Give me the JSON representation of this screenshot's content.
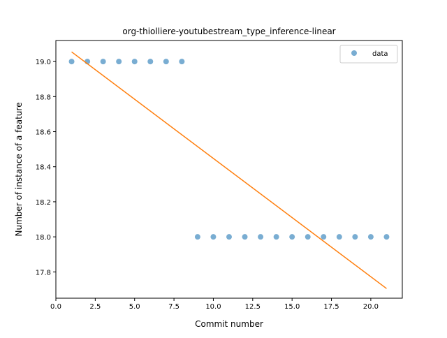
{
  "chart_data": {
    "type": "scatter",
    "title": "org-thiolliere-youtubestream_type_inference-linear",
    "xlabel": "Commit number",
    "ylabel": "Number of instance of a feature",
    "xlim": [
      0.0,
      22.0
    ],
    "ylim": [
      17.65,
      19.12
    ],
    "xticks": [
      0.0,
      2.5,
      5.0,
      7.5,
      10.0,
      12.5,
      15.0,
      17.5,
      20.0
    ],
    "xtick_labels": [
      "0.0",
      "2.5",
      "5.0",
      "7.5",
      "10.0",
      "12.5",
      "15.0",
      "17.5",
      "20.0"
    ],
    "yticks": [
      17.8,
      18.0,
      18.2,
      18.4,
      18.6,
      18.8,
      19.0
    ],
    "ytick_labels": [
      "17.8",
      "18.0",
      "18.2",
      "18.4",
      "18.6",
      "18.8",
      "19.0"
    ],
    "grid": false,
    "legend_position": "top-right",
    "series": [
      {
        "name": "data",
        "kind": "scatter",
        "color": "#1f77b4",
        "x": [
          1,
          2,
          3,
          4,
          5,
          6,
          7,
          8,
          9,
          10,
          11,
          12,
          13,
          14,
          15,
          16,
          17,
          18,
          19,
          20,
          21
        ],
        "y": [
          19,
          19,
          19,
          19,
          19,
          19,
          19,
          19,
          18,
          18,
          18,
          18,
          18,
          18,
          18,
          18,
          18,
          18,
          18,
          18,
          18
        ]
      },
      {
        "kind": "line",
        "color": "#ff7f0e",
        "x": [
          1,
          21
        ],
        "y": [
          19.055,
          17.705
        ]
      }
    ]
  }
}
